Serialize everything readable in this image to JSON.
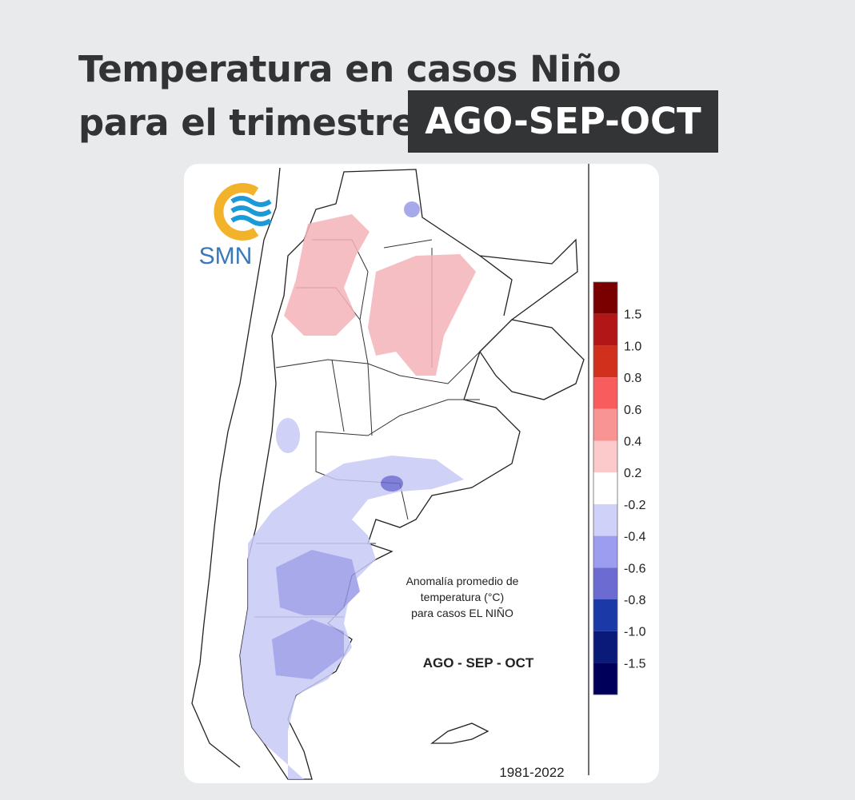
{
  "header": {
    "title_line1": "Temperatura en casos Niño",
    "title_line2": "para el trimestre",
    "highlight": "AGO-SEP-OCT"
  },
  "logo": {
    "text": "SMN"
  },
  "map": {
    "annotation": [
      "Anomalía promedio de",
      "temperatura (°C)",
      "para casos EL NIÑO"
    ],
    "season": "AGO - SEP - OCT",
    "period": "1981-2022"
  },
  "legend": {
    "colors": [
      "#7a0000",
      "#b31616",
      "#d0301c",
      "#f85c5c",
      "#f89494",
      "#fccaca",
      "#ffffff",
      "#d0d1f8",
      "#9c9df1",
      "#6b6bd2",
      "#1b3aa8",
      "#0a1a78",
      "#00005a"
    ],
    "labels": [
      "1.5",
      "1.0",
      "0.8",
      "0.6",
      "0.4",
      "0.2",
      "-0.2",
      "-0.4",
      "-0.6",
      "-0.8",
      "-1.0",
      "-1.5"
    ]
  }
}
